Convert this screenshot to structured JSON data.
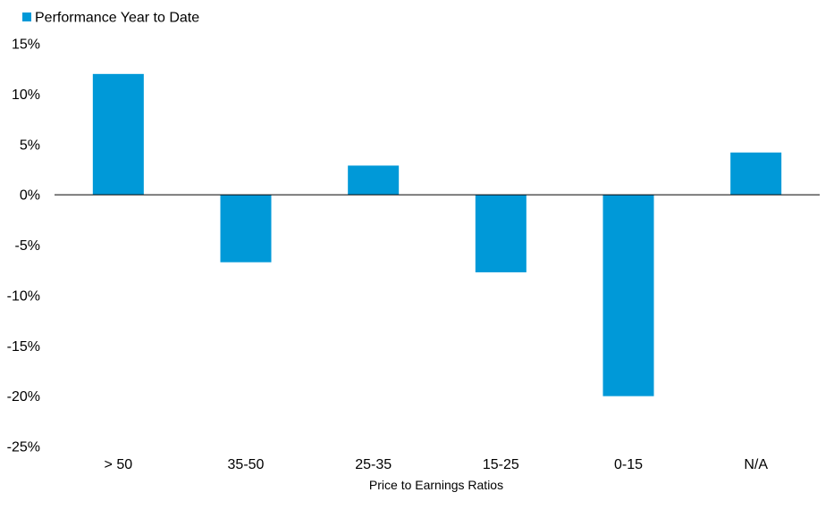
{
  "chart_data": {
    "type": "bar",
    "categories": [
      "> 50",
      "35-50",
      "25-35",
      "15-25",
      "0-15",
      "N/A"
    ],
    "series": [
      {
        "name": "Performance Year to Date",
        "values": [
          12.0,
          -6.7,
          2.9,
          -7.7,
          -20.0,
          4.2
        ]
      }
    ],
    "xlabel": "Price to Earnings Ratios",
    "ylabel": "",
    "ylim": [
      -25,
      15
    ],
    "yticks": [
      15,
      10,
      5,
      0,
      -5,
      -10,
      -15,
      -20,
      -25
    ],
    "ytick_labels": [
      "15%",
      "10%",
      "5%",
      "0%",
      "-5%",
      "-10%",
      "-15%",
      "-20%",
      "-25%"
    ],
    "legend_position": "top-left",
    "grid": false,
    "colors": {
      "bar": "#0099d8",
      "axis": "#000000"
    }
  }
}
